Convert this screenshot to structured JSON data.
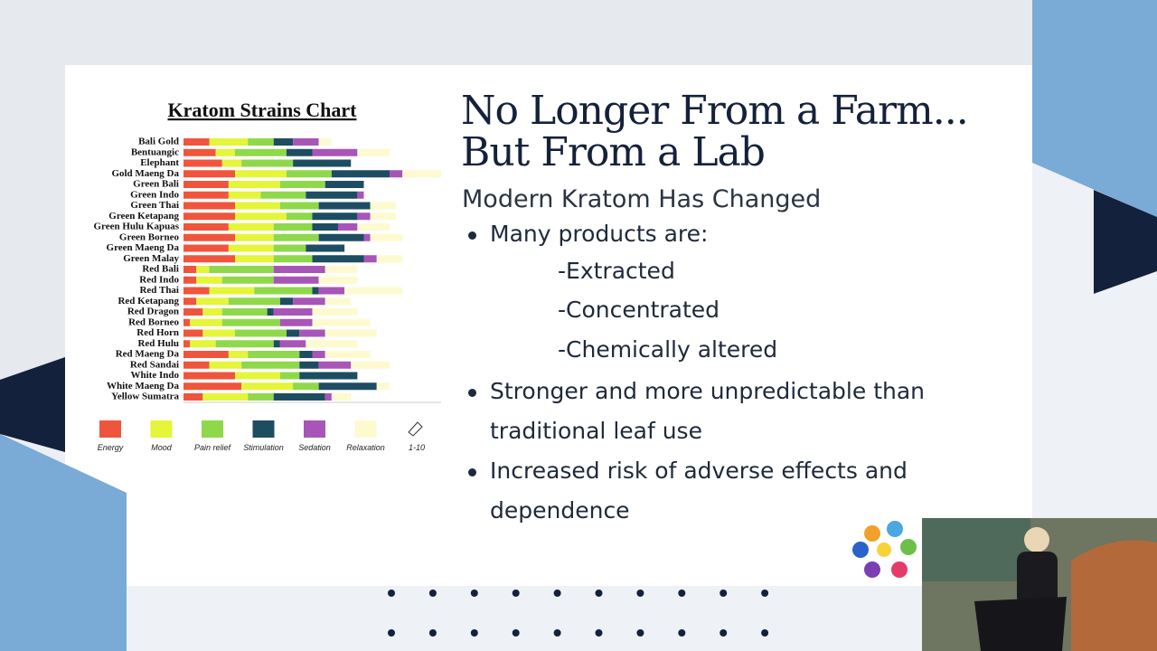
{
  "slide": {
    "title": [
      "No Longer From a Farm...",
      "But From a Lab"
    ],
    "subtitle": "Modern Kratom Has Changed",
    "bullets": [
      "Many products are:",
      "Stronger and more unpredictable than traditional leaf use",
      "Increased risk of adverse effects and dependence"
    ],
    "sub_bullets": [
      "-Extracted",
      "-Concentrated",
      "-Chemically altered"
    ]
  },
  "chart_data": {
    "type": "bar",
    "orientation": "horizontal",
    "stacked": true,
    "title": "Kratom Strains Chart",
    "scale_label": "1-10",
    "xlim": [
      0,
      40
    ],
    "categories": [
      "Bali Gold",
      "Bentuangic",
      "Elephant",
      "Gold Maeng Da",
      "Green Bali",
      "Green Indo",
      "Green Thai",
      "Green Ketapang",
      "Green Hulu Kapuas",
      "Green Borneo",
      "Green Maeng Da",
      "Green Malay",
      "Red Bali",
      "Red Indo",
      "Red Thai",
      "Red Ketapang",
      "Red Dragon",
      "Red Borneo",
      "Red Horn",
      "Red Hulu",
      "Red Maeng Da",
      "Red Sandai",
      "White Indo",
      "White Maeng Da",
      "Yellow Sumatra"
    ],
    "series": [
      {
        "name": "Energy",
        "color": "#ef553d",
        "values": [
          4,
          5,
          6,
          8,
          7,
          7,
          8,
          8,
          7,
          8,
          7,
          8,
          2,
          2,
          4,
          2,
          3,
          1,
          3,
          1,
          7,
          4,
          8,
          9,
          3
        ]
      },
      {
        "name": "Mood",
        "color": "#e4f53a",
        "values": [
          6,
          3,
          3,
          8,
          8,
          5,
          7,
          8,
          7,
          6,
          7,
          6,
          2,
          4,
          7,
          5,
          3,
          5,
          5,
          4,
          3,
          5,
          7,
          8,
          7
        ]
      },
      {
        "name": "Pain relief",
        "color": "#8fd84b",
        "values": [
          4,
          8,
          8,
          7,
          7,
          7,
          6,
          4,
          6,
          7,
          5,
          6,
          10,
          8,
          9,
          8,
          7,
          9,
          8,
          9,
          8,
          9,
          3,
          4,
          4
        ]
      },
      {
        "name": "Stimulation",
        "color": "#1e4d62",
        "values": [
          3,
          4,
          9,
          9,
          6,
          8,
          8,
          7,
          4,
          7,
          6,
          8,
          0,
          0,
          1,
          2,
          1,
          0,
          2,
          1,
          2,
          3,
          9,
          9,
          8
        ]
      },
      {
        "name": "Sedation",
        "color": "#a855b8",
        "values": [
          4,
          7,
          0,
          2,
          0,
          1,
          0,
          2,
          3,
          1,
          0,
          2,
          8,
          7,
          4,
          5,
          6,
          5,
          4,
          4,
          2,
          5,
          0,
          0,
          1
        ]
      },
      {
        "name": "Relaxation",
        "color": "#fdfad0",
        "values": [
          2,
          5,
          0,
          6,
          0,
          0,
          4,
          4,
          5,
          5,
          0,
          4,
          5,
          6,
          9,
          4,
          7,
          9,
          8,
          8,
          7,
          6,
          0,
          2,
          3
        ]
      }
    ]
  }
}
